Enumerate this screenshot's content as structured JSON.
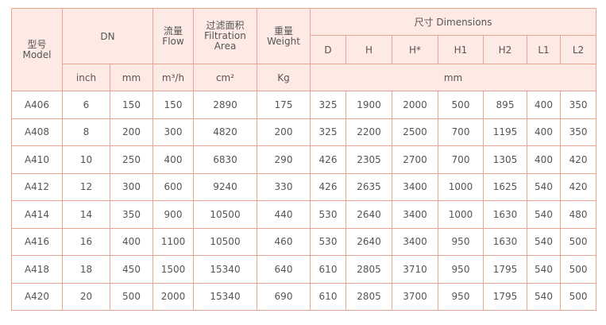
{
  "table": {
    "header": {
      "model": [
        "型号",
        "Model"
      ],
      "dn": "DN",
      "flow": [
        "流量",
        "Flow"
      ],
      "area": [
        "过滤面积",
        "Filtration",
        "Area"
      ],
      "weight": [
        "重量",
        "Weight"
      ],
      "dimensions": "尺寸 Dimensions",
      "dims": [
        "D",
        "H",
        "H*",
        "H1",
        "H2",
        "L1",
        "L2"
      ],
      "units": [
        "inch",
        "mm",
        "m³/h",
        "cm²",
        "Kg",
        "mm"
      ]
    },
    "rows": [
      [
        "A406",
        6,
        150,
        150,
        2890,
        175,
        325,
        1900,
        2000,
        500,
        895,
        400,
        350
      ],
      [
        "A408",
        8,
        200,
        300,
        4820,
        200,
        325,
        2200,
        2500,
        700,
        1195,
        400,
        350
      ],
      [
        "A410",
        10,
        250,
        400,
        6830,
        290,
        426,
        2305,
        2700,
        700,
        1305,
        400,
        420
      ],
      [
        "A412",
        12,
        300,
        600,
        9240,
        330,
        426,
        2635,
        3400,
        1000,
        1625,
        540,
        420
      ],
      [
        "A414",
        14,
        350,
        900,
        10500,
        440,
        530,
        2640,
        3400,
        1000,
        1630,
        540,
        480
      ],
      [
        "A416",
        16,
        400,
        1100,
        10500,
        460,
        530,
        2640,
        3400,
        950,
        1630,
        540,
        500
      ],
      [
        "A418",
        18,
        450,
        1500,
        15340,
        640,
        610,
        2805,
        3710,
        950,
        1795,
        540,
        500
      ],
      [
        "A420",
        20,
        500,
        2000,
        15340,
        690,
        610,
        2805,
        3700,
        950,
        1795,
        540,
        500
      ]
    ]
  }
}
